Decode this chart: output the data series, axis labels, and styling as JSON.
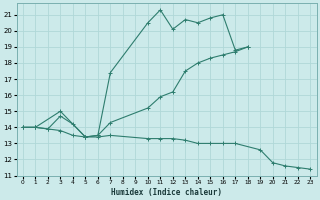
{
  "xlabel": "Humidex (Indice chaleur)",
  "xlim": [
    -0.5,
    23.5
  ],
  "ylim": [
    11,
    21.7
  ],
  "yticks": [
    11,
    12,
    13,
    14,
    15,
    16,
    17,
    18,
    19,
    20,
    21
  ],
  "xticks": [
    0,
    1,
    2,
    3,
    4,
    5,
    6,
    7,
    8,
    9,
    10,
    11,
    12,
    13,
    14,
    15,
    16,
    17,
    18,
    19,
    20,
    21,
    22,
    23
  ],
  "bg_color": "#cceaea",
  "grid_color": "#b0d8d8",
  "line_color": "#2e7d6e",
  "line1_x": [
    0,
    1,
    2,
    3,
    4,
    5,
    6,
    7,
    10,
    11,
    12,
    13,
    14,
    15,
    16,
    17,
    18
  ],
  "line1_y": [
    14.0,
    14.0,
    13.9,
    14.7,
    14.2,
    13.4,
    13.5,
    17.4,
    20.5,
    21.3,
    20.1,
    20.7,
    20.5,
    20.8,
    21.0,
    18.8,
    19.0
  ],
  "line2_x": [
    0,
    1,
    3,
    5,
    6,
    7,
    10,
    11,
    12,
    13,
    14,
    15,
    16,
    17,
    18
  ],
  "line2_y": [
    14.0,
    14.0,
    15.0,
    13.4,
    13.5,
    14.3,
    15.2,
    15.9,
    16.2,
    17.5,
    18.0,
    18.3,
    18.5,
    18.7,
    19.0
  ],
  "line3_x": [
    0,
    1,
    2,
    3,
    4,
    5,
    6,
    7,
    10,
    11,
    12,
    13,
    14,
    15,
    16,
    17,
    19,
    20,
    21,
    22,
    23
  ],
  "line3_y": [
    14.0,
    14.0,
    13.9,
    13.8,
    13.5,
    13.4,
    13.4,
    13.5,
    13.3,
    13.3,
    13.3,
    13.2,
    13.0,
    13.0,
    13.0,
    13.0,
    12.6,
    11.8,
    11.6,
    11.5,
    11.4
  ]
}
